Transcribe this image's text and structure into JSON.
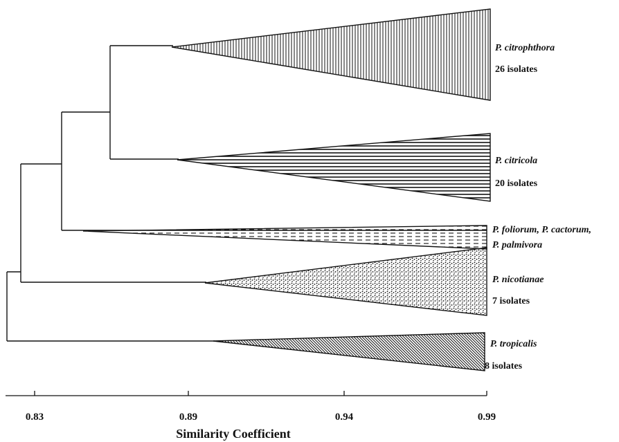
{
  "axis": {
    "title": "Similarity Coefficient",
    "ticks": [
      {
        "value": 0.83,
        "label": "0.83"
      },
      {
        "value": 0.89,
        "label": "0.89"
      },
      {
        "value": 0.94,
        "label": "0.94"
      },
      {
        "value": 0.99,
        "label": "0.99"
      }
    ]
  },
  "clades": [
    {
      "id": "citrophthora",
      "name": "P. citrophthora",
      "count": "26 isolates",
      "pattern": "vertical-lines"
    },
    {
      "id": "citricola",
      "name": "P. citricola",
      "count": "20 isolates",
      "pattern": "horizontal-lines"
    },
    {
      "id": "foliorum",
      "name_line1": "P. foliorum, P. cactorum,",
      "name_line2": "P. palmivora",
      "pattern": "dashes"
    },
    {
      "id": "nicotianae",
      "name": "P. nicotianae",
      "count": "7 isolates",
      "pattern": "stipple"
    },
    {
      "id": "tropicalis",
      "name": "P. tropicalis",
      "count": "8 isolates",
      "pattern": "diagonal-lines"
    }
  ]
}
